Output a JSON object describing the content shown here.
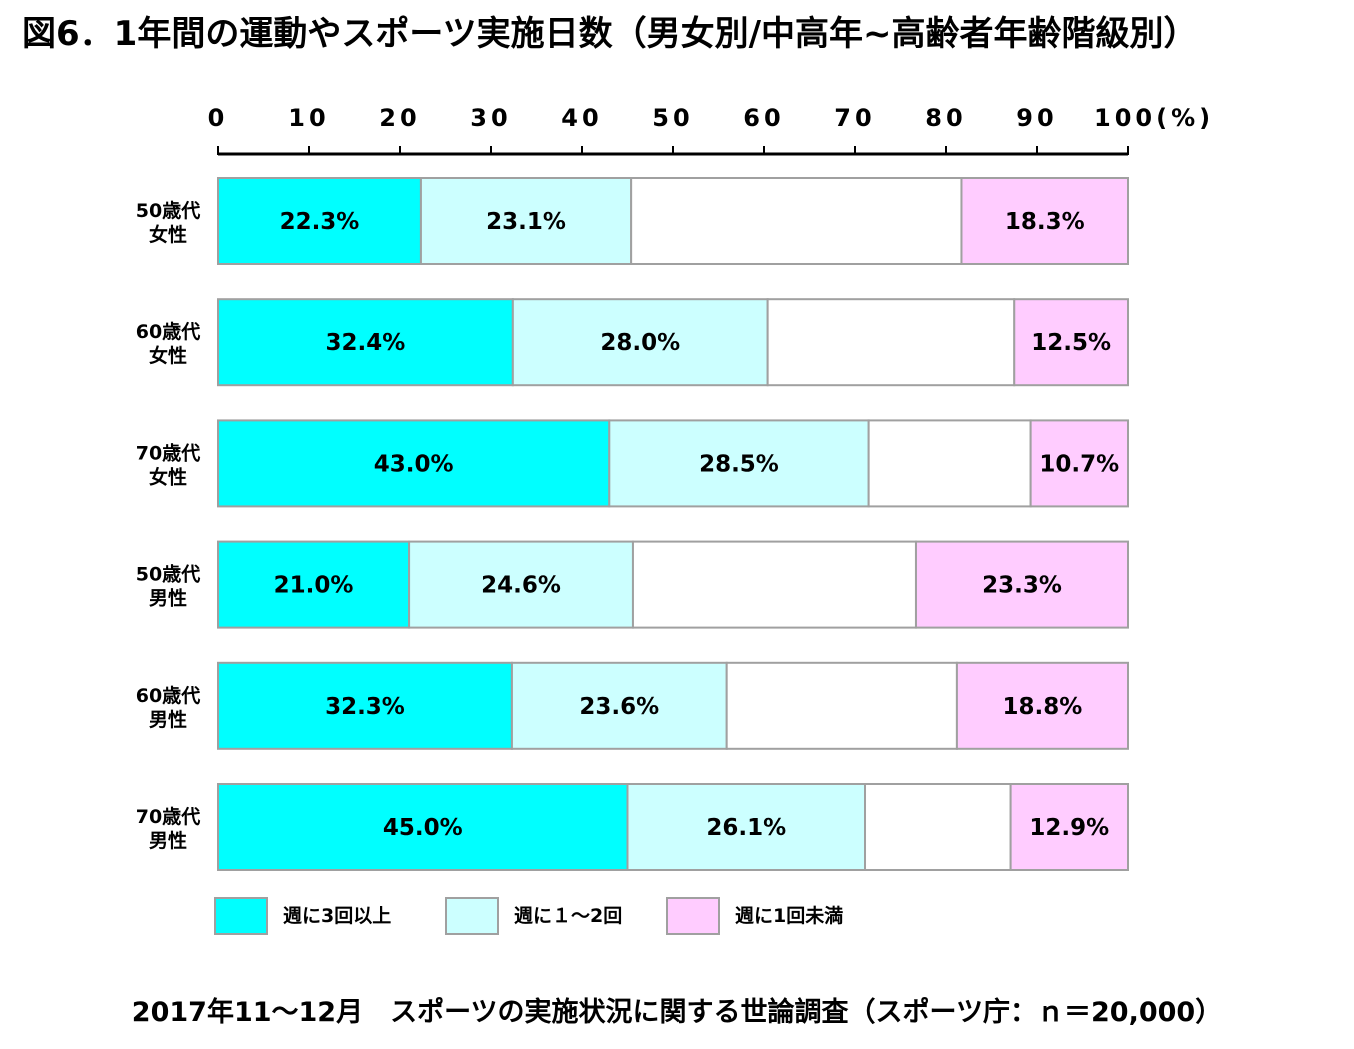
{
  "title": "図6．1年間の運動やスポーツ実施日数（男女別/中高年~高齢者年齢階級別）",
  "footer": "2017年11～12月　スポーツの実施状況に関する世論調査（スポーツ庁：ｎ＝20,000）",
  "colors": {
    "series1": "#00ffff",
    "series2": "#ccffff",
    "gap": "#ffffff",
    "series3": "#ffccff",
    "border": "#a0a0a0",
    "axis": "#000000"
  },
  "chart_data": {
    "type": "bar",
    "orientation": "horizontal",
    "stacked": true,
    "x_ticks": [
      "0",
      "10",
      "20",
      "30",
      "40",
      "50",
      "60",
      "70",
      "80",
      "90",
      "100(%)"
    ],
    "xlim": [
      0,
      100
    ],
    "categories": [
      [
        "50歳代",
        "女性"
      ],
      [
        "60歳代",
        "女性"
      ],
      [
        "70歳代",
        "女性"
      ],
      [
        "50歳代",
        "男性"
      ],
      [
        "60歳代",
        "男性"
      ],
      [
        "70歳代",
        "男性"
      ]
    ],
    "series": [
      {
        "name": "週に3回以上",
        "values": [
          22.3,
          32.4,
          43.0,
          21.0,
          32.3,
          45.0
        ],
        "labels": [
          "22.3%",
          "32.4%",
          "43.0%",
          "21.0%",
          "32.3%",
          "45.0%"
        ]
      },
      {
        "name": "週に１～2回",
        "values": [
          23.1,
          28.0,
          28.5,
          24.6,
          23.6,
          26.1
        ],
        "labels": [
          "23.1%",
          "28.0%",
          "28.5%",
          "24.6%",
          "23.6%",
          "26.1%"
        ]
      },
      {
        "name": "",
        "values": [
          36.3,
          27.1,
          17.8,
          31.1,
          25.3,
          16.0
        ],
        "labels": []
      },
      {
        "name": "週に1回未満",
        "values": [
          18.3,
          12.5,
          10.7,
          23.3,
          18.8,
          12.9
        ],
        "labels": [
          "18.3%",
          "12.5%",
          "10.7%",
          "23.3%",
          "18.8%",
          "12.9%"
        ]
      }
    ],
    "legend": [
      "週に3回以上",
      "週に１～2回",
      "週に1回未満"
    ],
    "legend_position": "bottom",
    "grid": false
  }
}
